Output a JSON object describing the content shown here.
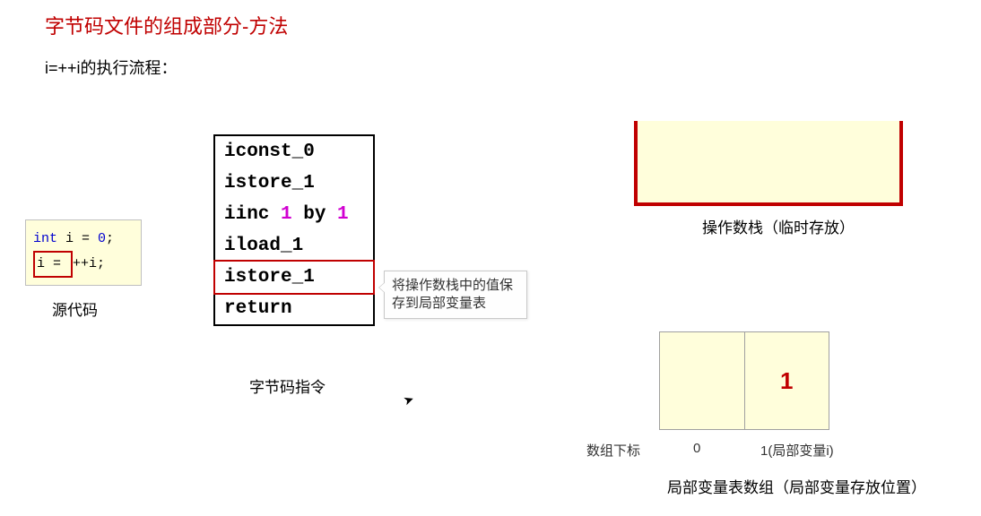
{
  "title": "字节码文件的组成部分-方法",
  "subtitle": "i=++i的执行流程：",
  "source": {
    "kw": "int",
    "var": " i = ",
    "num": "0",
    "semi": ";",
    "hl": "i = ",
    "rest": "++i;",
    "label": "源代码"
  },
  "bytecode": {
    "rows": [
      {
        "plain": "iconst_0"
      },
      {
        "plain": "istore_1"
      },
      {
        "pre": "iinc ",
        "p1": "1",
        "mid": " by ",
        "p2": "1"
      },
      {
        "plain": "iload_1"
      },
      {
        "plain": "istore_1",
        "highlight": true
      },
      {
        "plain": "return"
      }
    ],
    "label": "字节码指令"
  },
  "tooltip": "将操作数栈中的值保存到局部变量表",
  "stack": {
    "label": "操作数栈（临时存放）"
  },
  "localvars": {
    "cells": [
      "",
      "1"
    ],
    "idx_label": "数组下标",
    "idx0": "0",
    "idx1": "1(局部变量i)",
    "label": "局部变量表数组（局部变量存放位置）"
  }
}
